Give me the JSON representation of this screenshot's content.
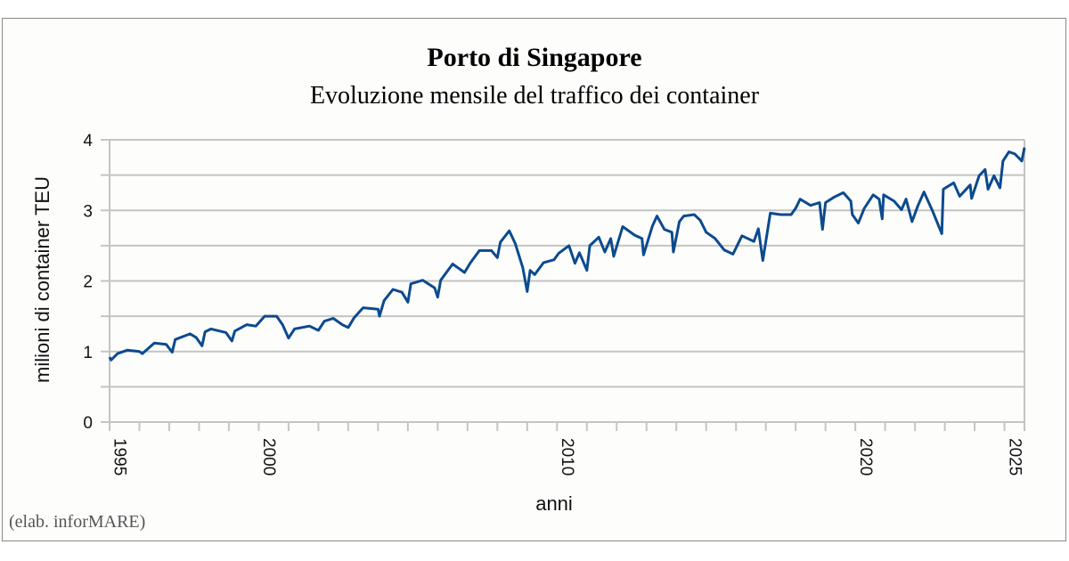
{
  "chart_data": {
    "type": "line",
    "title": "Porto di Singapore",
    "subtitle": "Evoluzione mensile del traffico dei container",
    "xlabel": "anni",
    "ylabel": "milioni di container TEU",
    "credit": "(elab. inforMARE)",
    "xlim": [
      1995,
      2025.67
    ],
    "ylim": [
      0,
      4
    ],
    "y_ticks": [
      "0",
      "1",
      "2",
      "3",
      "4"
    ],
    "x_tick_labels": [
      "1995",
      "2000",
      "2010",
      "2020",
      "2025"
    ],
    "grid": true,
    "grid_step": 0.5,
    "line_color": "#0c4a8e",
    "grid_color": "#c4c4c4",
    "series": [
      {
        "points": [
          [
            1995.0,
            0.92
          ],
          [
            1995.05,
            0.88
          ],
          [
            1995.27,
            0.97
          ],
          [
            1995.6,
            1.02
          ],
          [
            1996.0,
            1.0
          ],
          [
            1996.1,
            0.97
          ],
          [
            1996.5,
            1.12
          ],
          [
            1996.9,
            1.1
          ],
          [
            1997.1,
            0.99
          ],
          [
            1997.2,
            1.17
          ],
          [
            1997.7,
            1.25
          ],
          [
            1997.9,
            1.2
          ],
          [
            1998.1,
            1.08
          ],
          [
            1998.2,
            1.28
          ],
          [
            1998.4,
            1.32
          ],
          [
            1998.9,
            1.27
          ],
          [
            1999.1,
            1.15
          ],
          [
            1999.2,
            1.29
          ],
          [
            1999.6,
            1.38
          ],
          [
            1999.9,
            1.36
          ],
          [
            2000.2,
            1.5
          ],
          [
            2000.6,
            1.5
          ],
          [
            2000.8,
            1.38
          ],
          [
            2001.0,
            1.19
          ],
          [
            2001.2,
            1.32
          ],
          [
            2001.7,
            1.36
          ],
          [
            2002.0,
            1.3
          ],
          [
            2002.2,
            1.43
          ],
          [
            2002.5,
            1.47
          ],
          [
            2002.8,
            1.38
          ],
          [
            2003.0,
            1.34
          ],
          [
            2003.2,
            1.48
          ],
          [
            2003.5,
            1.62
          ],
          [
            2004.0,
            1.6
          ],
          [
            2004.05,
            1.5
          ],
          [
            2004.2,
            1.72
          ],
          [
            2004.5,
            1.88
          ],
          [
            2004.8,
            1.84
          ],
          [
            2005.0,
            1.7
          ],
          [
            2005.1,
            1.96
          ],
          [
            2005.5,
            2.01
          ],
          [
            2005.9,
            1.9
          ],
          [
            2006.0,
            1.77
          ],
          [
            2006.1,
            2.01
          ],
          [
            2006.5,
            2.24
          ],
          [
            2006.9,
            2.12
          ],
          [
            2007.1,
            2.26
          ],
          [
            2007.4,
            2.43
          ],
          [
            2007.8,
            2.43
          ],
          [
            2008.0,
            2.33
          ],
          [
            2008.1,
            2.55
          ],
          [
            2008.4,
            2.71
          ],
          [
            2008.6,
            2.53
          ],
          [
            2008.85,
            2.19
          ],
          [
            2009.0,
            1.85
          ],
          [
            2009.1,
            2.15
          ],
          [
            2009.25,
            2.09
          ],
          [
            2009.55,
            2.26
          ],
          [
            2009.9,
            2.3
          ],
          [
            2010.05,
            2.39
          ],
          [
            2010.4,
            2.5
          ],
          [
            2010.6,
            2.25
          ],
          [
            2010.75,
            2.4
          ],
          [
            2011.0,
            2.15
          ],
          [
            2011.1,
            2.5
          ],
          [
            2011.4,
            2.62
          ],
          [
            2011.6,
            2.41
          ],
          [
            2011.8,
            2.6
          ],
          [
            2011.9,
            2.35
          ],
          [
            2012.2,
            2.77
          ],
          [
            2012.6,
            2.65
          ],
          [
            2012.85,
            2.6
          ],
          [
            2012.9,
            2.37
          ],
          [
            2013.2,
            2.78
          ],
          [
            2013.35,
            2.92
          ],
          [
            2013.6,
            2.73
          ],
          [
            2013.85,
            2.69
          ],
          [
            2013.9,
            2.41
          ],
          [
            2014.1,
            2.84
          ],
          [
            2014.25,
            2.92
          ],
          [
            2014.6,
            2.94
          ],
          [
            2014.8,
            2.86
          ],
          [
            2015.0,
            2.69
          ],
          [
            2015.3,
            2.6
          ],
          [
            2015.6,
            2.44
          ],
          [
            2015.9,
            2.38
          ],
          [
            2016.2,
            2.64
          ],
          [
            2016.6,
            2.56
          ],
          [
            2016.75,
            2.74
          ],
          [
            2016.9,
            2.29
          ],
          [
            2017.15,
            2.96
          ],
          [
            2017.5,
            2.94
          ],
          [
            2017.85,
            2.94
          ],
          [
            2018.0,
            3.03
          ],
          [
            2018.15,
            3.16
          ],
          [
            2018.5,
            3.07
          ],
          [
            2018.8,
            3.11
          ],
          [
            2018.9,
            2.73
          ],
          [
            2019.0,
            3.11
          ],
          [
            2019.3,
            3.19
          ],
          [
            2019.6,
            3.25
          ],
          [
            2019.85,
            3.13
          ],
          [
            2019.9,
            2.94
          ],
          [
            2020.1,
            2.82
          ],
          [
            2020.3,
            3.03
          ],
          [
            2020.6,
            3.22
          ],
          [
            2020.8,
            3.16
          ],
          [
            2020.9,
            2.88
          ],
          [
            2020.95,
            3.22
          ],
          [
            2021.3,
            3.13
          ],
          [
            2021.55,
            3.01
          ],
          [
            2021.7,
            3.16
          ],
          [
            2021.9,
            2.84
          ],
          [
            2022.1,
            3.07
          ],
          [
            2022.3,
            3.26
          ],
          [
            2022.6,
            2.98
          ],
          [
            2022.9,
            2.67
          ],
          [
            2022.95,
            3.3
          ],
          [
            2023.3,
            3.39
          ],
          [
            2023.5,
            3.2
          ],
          [
            2023.85,
            3.36
          ],
          [
            2023.9,
            3.17
          ],
          [
            2024.15,
            3.49
          ],
          [
            2024.35,
            3.58
          ],
          [
            2024.45,
            3.3
          ],
          [
            2024.65,
            3.49
          ],
          [
            2024.85,
            3.32
          ],
          [
            2024.95,
            3.7
          ],
          [
            2025.15,
            3.83
          ],
          [
            2025.35,
            3.8
          ],
          [
            2025.58,
            3.7
          ],
          [
            2025.67,
            3.89
          ]
        ]
      }
    ]
  }
}
